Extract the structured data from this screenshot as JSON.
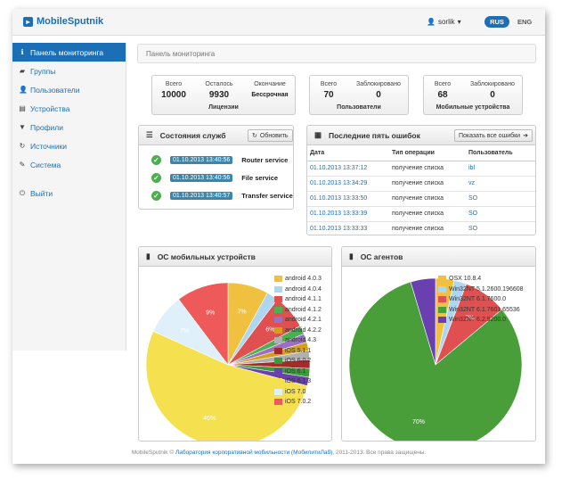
{
  "header": {
    "logo": "MobileSputnik",
    "user": "sorlik",
    "lang_active": "RUS",
    "lang_other": "ENG"
  },
  "sidebar": {
    "items": [
      {
        "label": "Панель мониторинга",
        "icon": "info-icon"
      },
      {
        "label": "Группы",
        "icon": "folder-icon"
      },
      {
        "label": "Пользователи",
        "icon": "users-icon"
      },
      {
        "label": "Устройства",
        "icon": "devices-icon"
      },
      {
        "label": "Профили",
        "icon": "filter-icon"
      },
      {
        "label": "Источники",
        "icon": "refresh-icon"
      },
      {
        "label": "Система",
        "icon": "wrench-icon"
      }
    ],
    "logout": "Выйти"
  },
  "breadcrumb": "Панель мониторинга",
  "licenses": {
    "labels": [
      "Всего",
      "Осталось",
      "Окончание"
    ],
    "values": [
      "10000",
      "9930",
      "Бессрочная"
    ],
    "caption": "Лицензии"
  },
  "users": {
    "labels": [
      "Всего",
      "Заблокировано"
    ],
    "values": [
      "70",
      "0"
    ],
    "caption": "Пользователи"
  },
  "devices": {
    "labels": [
      "Всего",
      "Заблокировано"
    ],
    "values": [
      "68",
      "0"
    ],
    "caption": "Мобильные устройства"
  },
  "services": {
    "title": "Состояния служб",
    "refresh": "Обновить",
    "rows": [
      {
        "time": "01.10.2013 13:40:56",
        "name": "Router service"
      },
      {
        "time": "01.10.2013 13:40:56",
        "name": "File service"
      },
      {
        "time": "01.10.2013 13:40:57",
        "name": "Transfer service"
      }
    ]
  },
  "errors": {
    "title": "Последние пять ошибок",
    "show_all": "Показать все ошибки",
    "columns": [
      "Дата",
      "Тип операции",
      "Пользователь"
    ],
    "rows": [
      [
        "01.10.2013 13:37:12",
        "получение списка",
        "ibl"
      ],
      [
        "01.10.2013 13:34:29",
        "получение списка",
        "vz"
      ],
      [
        "01.10.2013 13:33:50",
        "получение списка",
        "SO"
      ],
      [
        "01.10.2013 13:33:39",
        "получение списка",
        "SO"
      ],
      [
        "01.10.2013 13:33:33",
        "получение списка",
        "SO"
      ]
    ]
  },
  "chart_data": [
    {
      "type": "pie",
      "title": "ОС мобильных устройств",
      "series": [
        {
          "name": "android 4.0.3",
          "value": 7,
          "color": "#f0c040"
        },
        {
          "name": "android 4.0.4",
          "value": 2,
          "color": "#aed6f1"
        },
        {
          "name": "android 4.1.1",
          "value": 6,
          "color": "#e05050"
        },
        {
          "name": "android 4.1.2",
          "value": 1.5,
          "color": "#4caf50"
        },
        {
          "name": "android 4.2.1",
          "value": 1.5,
          "color": "#9c6fc4"
        },
        {
          "name": "android 4.2.2",
          "value": 1.5,
          "color": "#d4a017"
        },
        {
          "name": "android 4.3",
          "value": 1.5,
          "color": "#b0b0b0"
        },
        {
          "name": "iOS 5.1.1",
          "value": 1.5,
          "color": "#a52a2a"
        },
        {
          "name": "iOS 6.0.2",
          "value": 1.5,
          "color": "#3c9a3c"
        },
        {
          "name": "iOS 6.1",
          "value": 1.5,
          "color": "#6a3fb0"
        },
        {
          "name": "iOS 6.1.3",
          "value": 46,
          "color": "#f5e050"
        },
        {
          "name": "iOS 7.0",
          "value": 7,
          "color": "#dff0fa"
        },
        {
          "name": "iOS 7.0.2",
          "value": 9,
          "color": "#ee5a5a"
        }
      ],
      "labels": [
        {
          "index": 0,
          "text": "7%"
        },
        {
          "index": 2,
          "text": "6%"
        },
        {
          "index": 10,
          "text": "46%"
        },
        {
          "index": 11,
          "text": "7%"
        },
        {
          "index": 12,
          "text": "9%"
        }
      ]
    },
    {
      "type": "pie",
      "title": "ОС агентов",
      "series": [
        {
          "name": "OSX 10.8.4",
          "value": 3,
          "color": "#f0c040"
        },
        {
          "name": "Win32NT 5.1.2600.196608",
          "value": 2,
          "color": "#aed6f1"
        },
        {
          "name": "Win32NT 6.1.7600.0",
          "value": 7,
          "color": "#e05050"
        },
        {
          "name": "Win32NT 6.1.7601.65536",
          "value": 70,
          "color": "#4a9e3a"
        },
        {
          "name": "Win32NT 6.2.9200.0",
          "value": 4,
          "color": "#6a3fb0"
        }
      ],
      "labels": [
        {
          "index": 2,
          "text": "7%"
        },
        {
          "index": 3,
          "text": "70%"
        }
      ]
    }
  ],
  "footer": {
    "brand": "MobileSputnik ©",
    "link": "Лаборатория корпоративной мобильности (МобилитиЛаб)",
    "rest": ", 2011-2013. Все права защищены."
  }
}
